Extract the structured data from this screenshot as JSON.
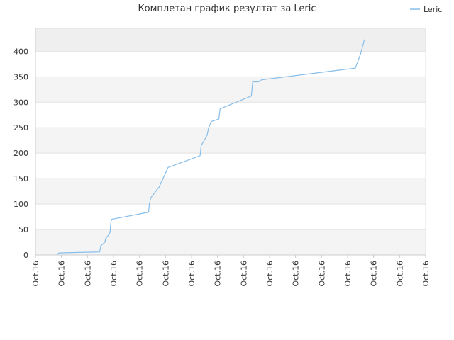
{
  "chart_data": {
    "type": "line",
    "title": "Комплетан график резултат за Leric",
    "xlabel": "",
    "ylabel": "",
    "ylim": [
      0,
      445
    ],
    "yticks": [
      0,
      50,
      100,
      150,
      200,
      250,
      300,
      350,
      400
    ],
    "x_tick_labels": [
      "Oct.16",
      "Oct.16",
      "Oct.16",
      "Oct.16",
      "Oct.16",
      "Oct.16",
      "Oct.16",
      "Oct.16",
      "Oct.16",
      "Oct.16",
      "Oct.16",
      "Oct.16",
      "Oct.16",
      "Oct.16",
      "Oct.16",
      "Oct.16"
    ],
    "x_range": [
      0,
      15
    ],
    "legend": {
      "position": "top-right"
    },
    "series": [
      {
        "name": "Leric",
        "color": "#87BEEA",
        "x": [
          0.83,
          0.9,
          1.67,
          2.47,
          2.51,
          2.6,
          2.67,
          2.7,
          2.83,
          2.87,
          2.89,
          2.92,
          4.35,
          4.38,
          4.43,
          4.55,
          4.7,
          4.75,
          4.9,
          5.1,
          6.33,
          6.37,
          6.6,
          6.65,
          6.75,
          7.05,
          7.1,
          8.3,
          8.35,
          8.58,
          8.62,
          8.7,
          12.3,
          12.5,
          12.65
        ],
        "y": [
          0,
          4,
          5,
          6,
          18,
          22,
          25,
          33,
          40,
          45,
          60,
          70,
          84,
          100,
          112,
          120,
          130,
          133,
          150,
          172,
          195,
          215,
          235,
          248,
          262,
          267,
          287,
          312,
          340,
          340,
          342,
          344,
          367,
          395,
          423
        ]
      }
    ]
  }
}
